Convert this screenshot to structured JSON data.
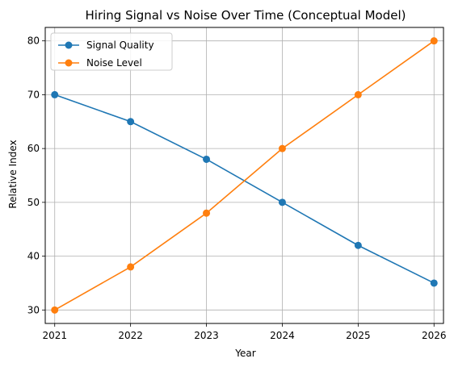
{
  "chart_data": {
    "type": "line",
    "title": "Hiring Signal vs Noise Over Time (Conceptual Model)",
    "xlabel": "Year",
    "ylabel": "Relative Index",
    "categories": [
      "2021",
      "2022",
      "2023",
      "2024",
      "2025",
      "2026"
    ],
    "x": [
      2021,
      2022,
      2023,
      2024,
      2025,
      2026
    ],
    "yticks": [
      30,
      40,
      50,
      60,
      70,
      80
    ],
    "xlim": [
      2020.875,
      2026.125
    ],
    "ylim": [
      27.5,
      82.5
    ],
    "grid": true,
    "legend_position": "upper-left",
    "series": [
      {
        "name": "Signal Quality",
        "color": "#1f77b4",
        "marker": "circle",
        "values": [
          70,
          65,
          58,
          50,
          42,
          35
        ]
      },
      {
        "name": "Noise Level",
        "color": "#ff7f0e",
        "marker": "circle",
        "values": [
          30,
          38,
          48,
          60,
          70,
          80
        ]
      }
    ]
  }
}
